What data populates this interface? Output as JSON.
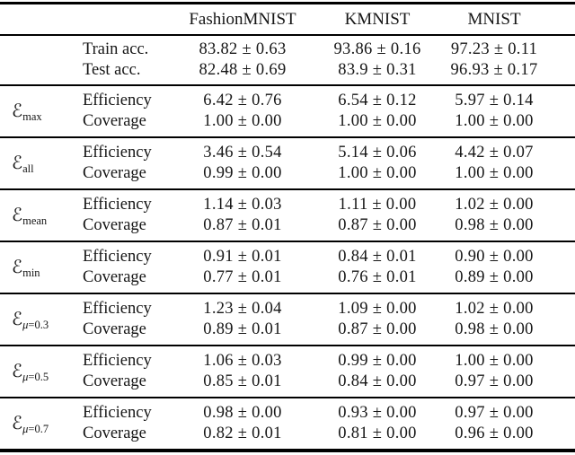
{
  "table": {
    "header": {
      "col_fashionmnist": "FashionMNIST",
      "col_kmnist": "KMNIST",
      "col_mnist": "MNIST"
    },
    "accuracy": {
      "rows": [
        {
          "label": "Train acc.",
          "values": [
            "83.82 ± 0.63",
            "93.86 ± 0.16",
            "97.23 ± 0.11"
          ]
        },
        {
          "label": "Test acc.",
          "values": [
            "82.48 ± 0.69",
            "83.9 ± 0.31",
            "96.93 ± 0.17"
          ]
        }
      ]
    },
    "sections": [
      {
        "id": "max",
        "symbol": "ℰ",
        "sub_italic": "",
        "sub_plain": "max",
        "rows": [
          {
            "label": "Efficiency",
            "values": [
              "6.42 ± 0.76",
              "6.54 ± 0.12",
              "5.97 ± 0.14"
            ]
          },
          {
            "label": "Coverage",
            "values": [
              "1.00 ± 0.00",
              "1.00 ± 0.00",
              "1.00 ± 0.00"
            ]
          }
        ]
      },
      {
        "id": "all",
        "symbol": "ℰ",
        "sub_italic": "",
        "sub_plain": "all",
        "rows": [
          {
            "label": "Efficiency",
            "values": [
              "3.46 ± 0.54",
              "5.14 ± 0.06",
              "4.42 ± 0.07"
            ]
          },
          {
            "label": "Coverage",
            "values": [
              "0.99 ± 0.00",
              "1.00 ± 0.00",
              "1.00 ± 0.00"
            ]
          }
        ]
      },
      {
        "id": "mean",
        "symbol": "ℰ",
        "sub_italic": "",
        "sub_plain": "mean",
        "rows": [
          {
            "label": "Efficiency",
            "values": [
              "1.14 ± 0.03",
              "1.11 ± 0.00",
              "1.02 ± 0.00"
            ]
          },
          {
            "label": "Coverage",
            "values": [
              "0.87 ± 0.01",
              "0.87 ± 0.00",
              "0.98 ± 0.00"
            ]
          }
        ]
      },
      {
        "id": "min",
        "symbol": "ℰ",
        "sub_italic": "",
        "sub_plain": "min",
        "rows": [
          {
            "label": "Efficiency",
            "values": [
              "0.91 ± 0.01",
              "0.84 ± 0.01",
              "0.90 ± 0.00"
            ]
          },
          {
            "label": "Coverage",
            "values": [
              "0.77 ± 0.01",
              "0.76 ± 0.01",
              "0.89 ± 0.00"
            ]
          }
        ]
      },
      {
        "id": "mu-0.3",
        "symbol": "ℰ",
        "sub_italic": "μ",
        "sub_plain": "=0.3",
        "rows": [
          {
            "label": "Efficiency",
            "values": [
              "1.23 ± 0.04",
              "1.09 ± 0.00",
              "1.02 ± 0.00"
            ]
          },
          {
            "label": "Coverage",
            "values": [
              "0.89 ± 0.01",
              "0.87 ± 0.00",
              "0.98 ± 0.00"
            ]
          }
        ]
      },
      {
        "id": "mu-0.5",
        "symbol": "ℰ",
        "sub_italic": "μ",
        "sub_plain": "=0.5",
        "rows": [
          {
            "label": "Efficiency",
            "values": [
              "1.06 ± 0.03",
              "0.99 ± 0.00",
              "1.00 ± 0.00"
            ]
          },
          {
            "label": "Coverage",
            "values": [
              "0.85 ± 0.01",
              "0.84 ± 0.00",
              "0.97 ± 0.00"
            ]
          }
        ]
      },
      {
        "id": "mu-0.7",
        "symbol": "ℰ",
        "sub_italic": "μ",
        "sub_plain": "=0.7",
        "rows": [
          {
            "label": "Efficiency",
            "values": [
              "0.98 ± 0.00",
              "0.93 ± 0.00",
              "0.97 ± 0.00"
            ]
          },
          {
            "label": "Coverage",
            "values": [
              "0.82 ± 0.01",
              "0.81 ± 0.00",
              "0.96 ± 0.00"
            ]
          }
        ]
      }
    ]
  }
}
